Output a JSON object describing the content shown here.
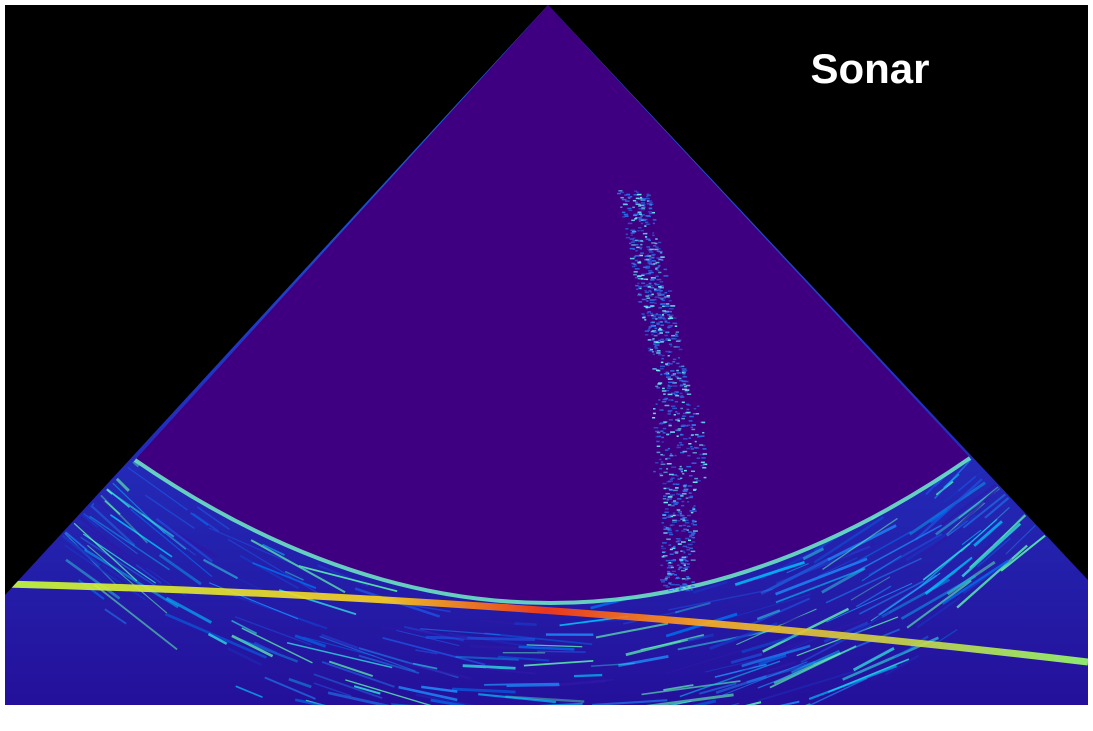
{
  "title": "Sonar"
}
